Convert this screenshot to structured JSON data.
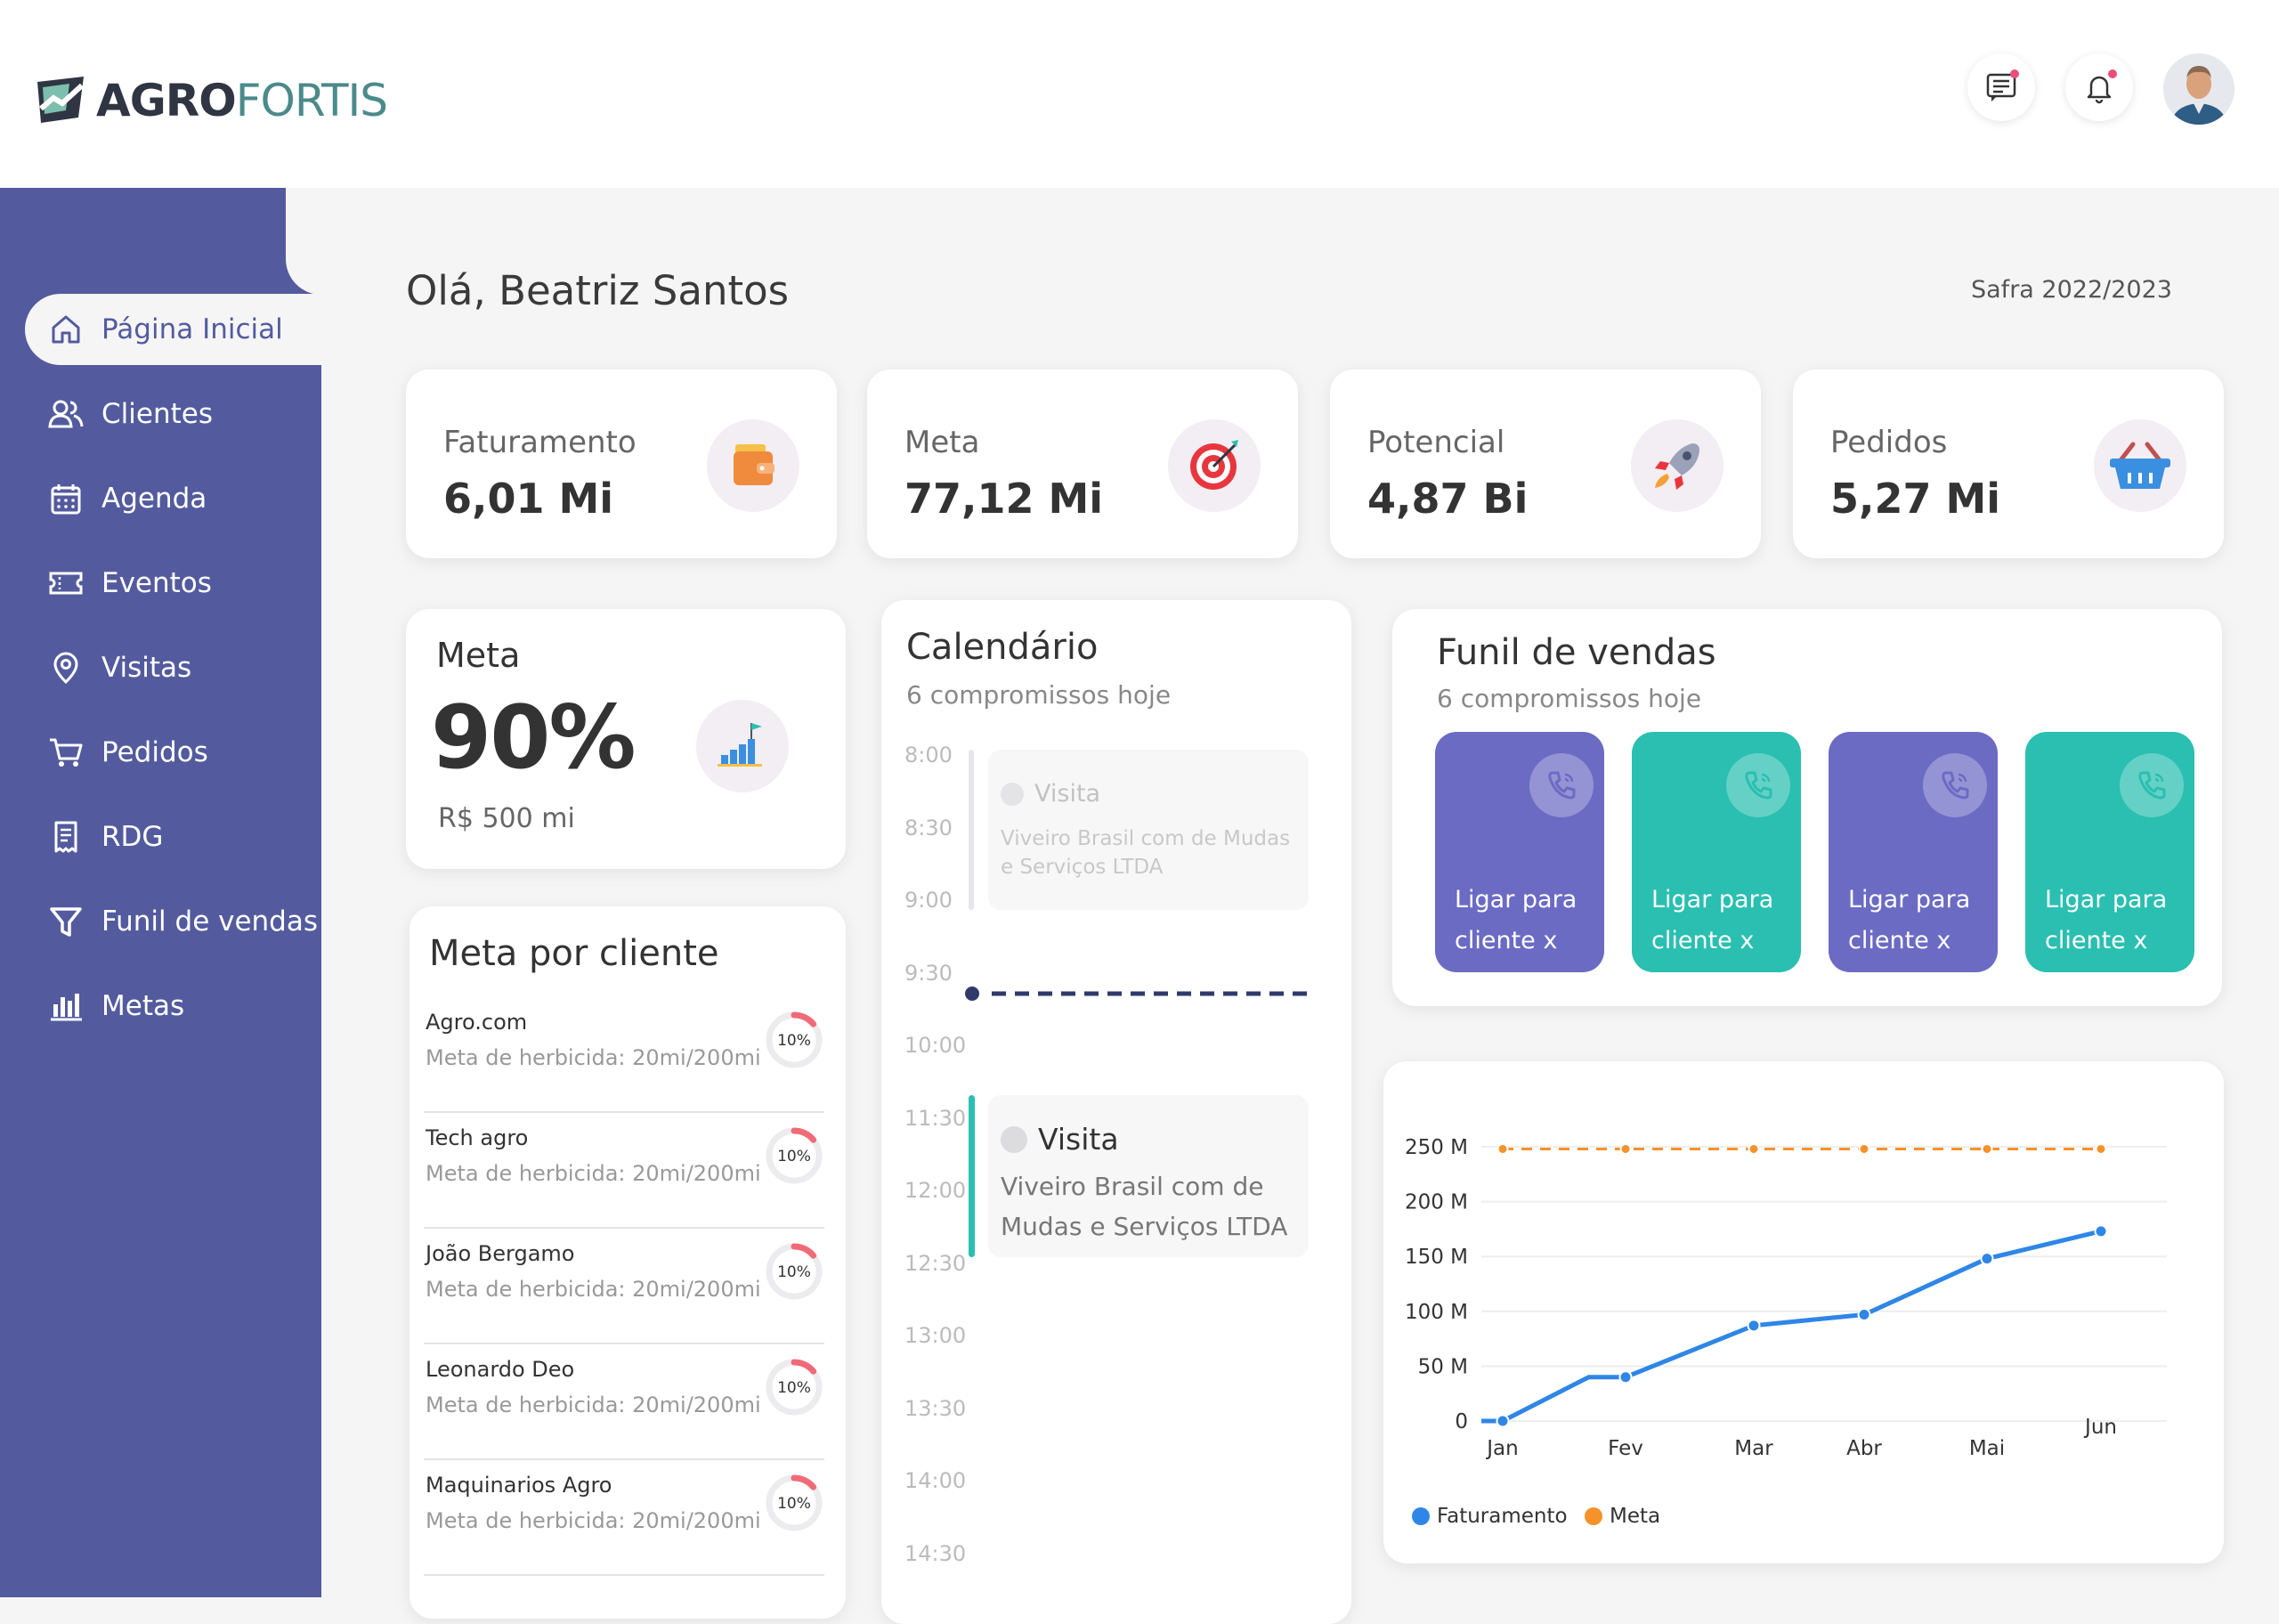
{
  "brand": {
    "part1": "AGRO",
    "part2": "FORTIS"
  },
  "header": {
    "icons": [
      "chat-icon",
      "bell-icon"
    ]
  },
  "user": {
    "greeting": "Olá, Beatriz Santos"
  },
  "safra": "Safra 2022/2023",
  "sidebar": {
    "items": [
      {
        "label": "Página Inicial",
        "icon": "home-icon",
        "active": true
      },
      {
        "label": "Clientes",
        "icon": "users-icon"
      },
      {
        "label": "Agenda",
        "icon": "calendar-icon"
      },
      {
        "label": "Eventos",
        "icon": "ticket-icon"
      },
      {
        "label": "Visitas",
        "icon": "pin-icon"
      },
      {
        "label": "Pedidos",
        "icon": "cart-icon"
      },
      {
        "label": "RDG",
        "icon": "receipt-icon"
      },
      {
        "label": "Funil de vendas",
        "icon": "funnel-icon"
      },
      {
        "label": "Metas",
        "icon": "bar-chart-icon"
      }
    ]
  },
  "kpis": [
    {
      "label": "Faturamento",
      "value": "6,01 Mi",
      "icon": "wallet-icon"
    },
    {
      "label": "Meta",
      "value": "77,12 Mi",
      "icon": "target-icon"
    },
    {
      "label": "Potencial",
      "value": "4,87 Bi",
      "icon": "rocket-icon"
    },
    {
      "label": "Pedidos",
      "value": "5,27 Mi",
      "icon": "basket-icon"
    }
  ],
  "meta_card": {
    "title": "Meta",
    "percent": "90%",
    "subtitle": "R$ 500 mi",
    "icon": "growth-chart-icon"
  },
  "meta_por_cliente": {
    "title": "Meta por cliente",
    "rows": [
      {
        "name": "Agro.com",
        "desc": "Meta de herbicida: 20mi/200mi",
        "pct": "10%",
        "fraction": 0.1
      },
      {
        "name": "Tech agro",
        "desc": "Meta de herbicida: 20mi/200mi",
        "pct": "10%",
        "fraction": 0.1
      },
      {
        "name": "João Bergamo",
        "desc": "Meta de herbicida: 20mi/200mi",
        "pct": "10%",
        "fraction": 0.1
      },
      {
        "name": "Leonardo Deo",
        "desc": "Meta de herbicida: 20mi/200mi",
        "pct": "10%",
        "fraction": 0.1
      },
      {
        "name": "Maquinarios Agro",
        "desc": "Meta de herbicida: 20mi/200mi",
        "pct": "10%",
        "fraction": 0.1
      }
    ]
  },
  "calendario": {
    "title": "Calendário",
    "subtitle": "6 compromissos hoje",
    "times": [
      "8:00",
      "8:30",
      "9:00",
      "9:30",
      "10:00",
      "11:30",
      "12:00",
      "12:30",
      "13:00",
      "13:30",
      "14:00",
      "14:30"
    ],
    "events": [
      {
        "type": "Visita",
        "desc": "Viveiro Brasil com de Mudas e Serviços LTDA",
        "faded": true
      },
      {
        "type": "Visita",
        "desc": "Viveiro Brasil com de Mudas e Serviços LTDA",
        "faded": false
      }
    ]
  },
  "funil": {
    "title": "Funil de vendas",
    "subtitle": "6 compromissos hoje",
    "cards": [
      {
        "label": "Ligar para cliente x",
        "color": "#6b6bc4"
      },
      {
        "label": "Ligar para cliente x",
        "color": "#2abfb0"
      },
      {
        "label": "Ligar para cliente x",
        "color": "#6b6bc4"
      },
      {
        "label": "Ligar para cliente x",
        "color": "#2abfb0"
      }
    ]
  },
  "chart_data": {
    "type": "line",
    "categories": [
      "Jan",
      "Fev",
      "Mar",
      "Abr",
      "Mai",
      "Jun"
    ],
    "y_ticks": [
      "0",
      "50 M",
      "100 M",
      "150 M",
      "200 M",
      "250 M"
    ],
    "ylim": [
      0,
      250
    ],
    "series": [
      {
        "name": "Faturamento",
        "color": "#2f86e6",
        "points": [
          [
            0,
            0
          ],
          [
            0.7,
            40
          ],
          [
            1,
            40
          ],
          [
            2,
            87
          ],
          [
            3,
            97
          ],
          [
            4,
            148
          ],
          [
            5,
            173
          ]
        ]
      },
      {
        "name": "Meta",
        "color": "#f5922a",
        "dashed": true,
        "points": [
          [
            0,
            248
          ],
          [
            1,
            248
          ],
          [
            2,
            248
          ],
          [
            3,
            248
          ],
          [
            4,
            248
          ],
          [
            5,
            248
          ]
        ]
      }
    ],
    "legend_position": "bottom-left",
    "grid": true
  }
}
